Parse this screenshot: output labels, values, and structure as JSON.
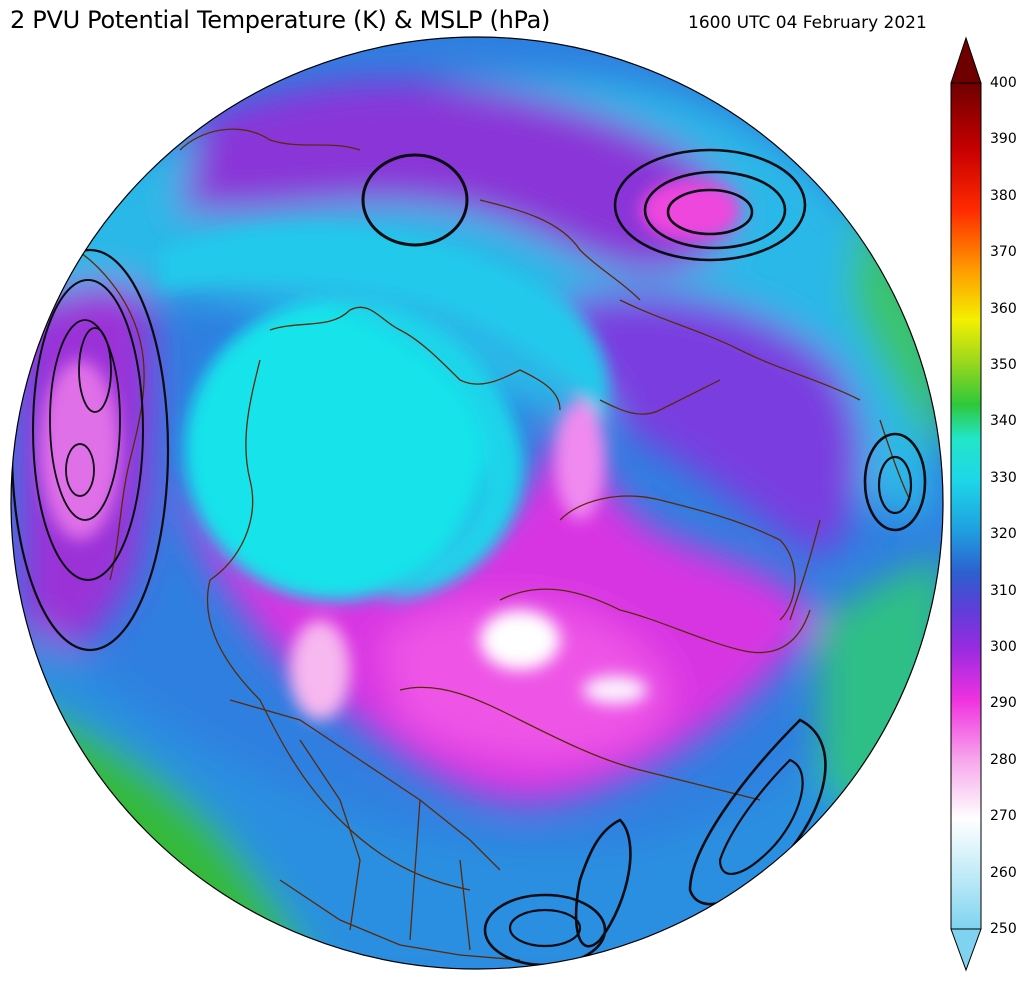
{
  "header": {
    "title": "2 PVU Potential Temperature (K) & MSLP (hPa)",
    "valid_time": "1600 UTC 04 February 2021"
  },
  "map": {
    "projection": "north-polar-stereographic",
    "fields": [
      "potential temperature on 2 PVU surface (shaded)",
      "mean sea level pressure (black contours)"
    ]
  },
  "colorbar": {
    "min": 250,
    "max": 400,
    "tick_labels": [
      "250",
      "260",
      "270",
      "280",
      "290",
      "300",
      "310",
      "320",
      "330",
      "340",
      "350",
      "360",
      "370",
      "380",
      "390",
      "400"
    ],
    "extend": "both",
    "colors": [
      "#7fd3f0",
      "#bde9f7",
      "#ffffff",
      "#f7a6ec",
      "#f032e0",
      "#9a2be0",
      "#5a3fd8",
      "#2d5fcf",
      "#1f9ee0",
      "#1ed6e8",
      "#22e6c8",
      "#2ec83a",
      "#9ad81c",
      "#f3f000",
      "#ff9a00",
      "#ff2a00",
      "#c80000",
      "#6e0000"
    ]
  },
  "colors": {
    "ocean_ice": "#19d8e8",
    "trough_magenta": "#e23ce0",
    "purple": "#7a34d8",
    "warm_green": "#36b93a",
    "coastline": "#5a2a0a",
    "isobar": "#0b0b12"
  }
}
